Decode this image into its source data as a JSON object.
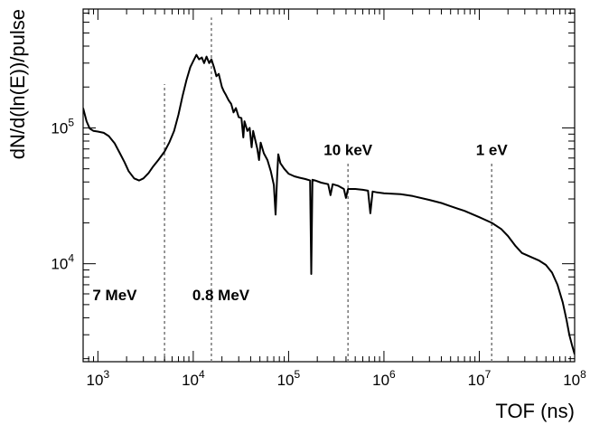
{
  "chart_data": {
    "type": "line",
    "title": "",
    "xlabel": "TOF (ns)",
    "ylabel": "dN/d(ln(E))/pulse",
    "xscale": "log",
    "yscale": "log",
    "xlim": [
      700,
      100000000
    ],
    "ylim": [
      1900,
      750000
    ],
    "grid": false,
    "x_ticks": [
      {
        "value": 1000,
        "base": "10",
        "exp": "3"
      },
      {
        "value": 10000,
        "base": "10",
        "exp": "4"
      },
      {
        "value": 100000,
        "base": "10",
        "exp": "5"
      },
      {
        "value": 1000000,
        "base": "10",
        "exp": "6"
      },
      {
        "value": 10000000,
        "base": "10",
        "exp": "7"
      },
      {
        "value": 100000000,
        "base": "10",
        "exp": "8"
      }
    ],
    "y_ticks": [
      {
        "value": 10000,
        "base": "10",
        "exp": "4"
      },
      {
        "value": 100000,
        "base": "10",
        "exp": "5"
      }
    ],
    "markers": [
      {
        "label": "7 MeV",
        "x": 5000,
        "y_top": 210000,
        "label_x": 1500,
        "label_y": 5400
      },
      {
        "label": "0.8 MeV",
        "x": 15500,
        "y_top": 650000,
        "label_x": 19500,
        "label_y": 5400
      },
      {
        "label": "10 keV",
        "x": 420000,
        "y_top": 56000,
        "label_x": 420000,
        "label_y": 63000
      },
      {
        "label": "1 eV",
        "x": 13500000,
        "y_top": 56000,
        "label_x": 13500000,
        "label_y": 63000
      }
    ],
    "series": [
      {
        "points": [
          [
            700,
            140000
          ],
          [
            760,
            112000
          ],
          [
            820,
            99000
          ],
          [
            900,
            95000
          ],
          [
            1000,
            94000
          ],
          [
            1150,
            92000
          ],
          [
            1300,
            87000
          ],
          [
            1500,
            77000
          ],
          [
            1700,
            65000
          ],
          [
            1900,
            56000
          ],
          [
            2100,
            48000
          ],
          [
            2400,
            42500
          ],
          [
            2700,
            41000
          ],
          [
            3000,
            42500
          ],
          [
            3400,
            46500
          ],
          [
            3800,
            52000
          ],
          [
            4300,
            58000
          ],
          [
            5000,
            67000
          ],
          [
            5600,
            78000
          ],
          [
            6300,
            95000
          ],
          [
            7000,
            125000
          ],
          [
            7700,
            170000
          ],
          [
            8500,
            225000
          ],
          [
            9300,
            280000
          ],
          [
            10000,
            310000
          ],
          [
            10800,
            345000
          ],
          [
            11500,
            320000
          ],
          [
            12300,
            330000
          ],
          [
            13000,
            300000
          ],
          [
            13800,
            335000
          ],
          [
            14700,
            300000
          ],
          [
            15500,
            320000
          ],
          [
            16500,
            280000
          ],
          [
            17500,
            240000
          ],
          [
            18500,
            250000
          ],
          [
            20000,
            200000
          ],
          [
            21000,
            185000
          ],
          [
            22000,
            175000
          ],
          [
            23500,
            160000
          ],
          [
            25000,
            150000
          ],
          [
            26500,
            130000
          ],
          [
            28000,
            140000
          ],
          [
            30000,
            120000
          ],
          [
            32000,
            118000
          ],
          [
            33500,
            85000
          ],
          [
            34500,
            112000
          ],
          [
            37000,
            95000
          ],
          [
            39000,
            100000
          ],
          [
            41000,
            72000
          ],
          [
            42500,
            95000
          ],
          [
            45000,
            80000
          ],
          [
            47000,
            70000
          ],
          [
            49000,
            58000
          ],
          [
            51000,
            78000
          ],
          [
            55000,
            65000
          ],
          [
            60000,
            58000
          ],
          [
            65000,
            48000
          ],
          [
            70000,
            38000
          ],
          [
            73000,
            23000
          ],
          [
            76000,
            45000
          ],
          [
            78000,
            64000
          ],
          [
            82000,
            55000
          ],
          [
            90000,
            50000
          ],
          [
            100000,
            46000
          ],
          [
            115000,
            44000
          ],
          [
            130000,
            43000
          ],
          [
            150000,
            42000
          ],
          [
            168000,
            41000
          ],
          [
            173000,
            8400
          ],
          [
            178000,
            41500
          ],
          [
            190000,
            41000
          ],
          [
            220000,
            39500
          ],
          [
            260000,
            38500
          ],
          [
            275000,
            32000
          ],
          [
            290000,
            38500
          ],
          [
            330000,
            37500
          ],
          [
            380000,
            35500
          ],
          [
            400000,
            30500
          ],
          [
            420000,
            35500
          ],
          [
            500000,
            35500
          ],
          [
            600000,
            35000
          ],
          [
            680000,
            34500
          ],
          [
            720000,
            23500
          ],
          [
            760000,
            34000
          ],
          [
            850000,
            33500
          ],
          [
            1000000,
            33000
          ],
          [
            1500000,
            32500
          ],
          [
            2000000,
            31500
          ],
          [
            3000000,
            29500
          ],
          [
            4000000,
            28000
          ],
          [
            5000000,
            26500
          ],
          [
            7000000,
            24500
          ],
          [
            10000000,
            22000
          ],
          [
            13500000,
            20000
          ],
          [
            17000000,
            18000
          ],
          [
            20000000,
            16000
          ],
          [
            24000000,
            13500
          ],
          [
            28000000,
            12000
          ],
          [
            35000000,
            11200
          ],
          [
            42000000,
            10600
          ],
          [
            50000000,
            9800
          ],
          [
            58000000,
            8600
          ],
          [
            66000000,
            7000
          ],
          [
            75000000,
            5200
          ],
          [
            82000000,
            3900
          ],
          [
            88000000,
            3000
          ],
          [
            94000000,
            2500
          ],
          [
            100000000,
            2150
          ]
        ]
      }
    ]
  }
}
